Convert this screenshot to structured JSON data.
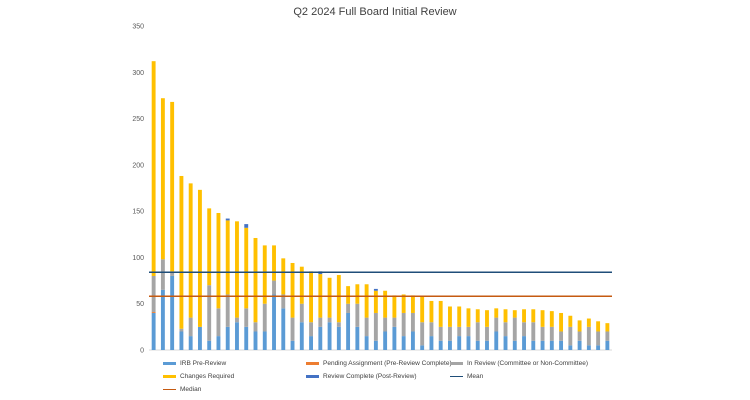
{
  "chart_data": {
    "type": "bar",
    "stacked": true,
    "title": "Q2 2024 Full Board Initial Review",
    "xlabel": "",
    "ylabel": "",
    "ylim": [
      0,
      350
    ],
    "yticks": [
      0,
      50,
      100,
      150,
      200,
      250,
      300,
      350
    ],
    "grid": false,
    "legend_position": "bottom",
    "series": [
      {
        "name": "IRB Pre-Review",
        "color": "#5b9bd5",
        "values": [
          40,
          65,
          80,
          20,
          15,
          25,
          10,
          15,
          25,
          30,
          25,
          20,
          20,
          60,
          45,
          10,
          30,
          15,
          25,
          30,
          25,
          40,
          25,
          15,
          10,
          20,
          25,
          15,
          20,
          5,
          15,
          10,
          10,
          15,
          15,
          10,
          10,
          20,
          15,
          10,
          15,
          10,
          10,
          10,
          10,
          5,
          10,
          5,
          5,
          10
        ]
      },
      {
        "name": "Pending Assignment (Pre-Review Complete)",
        "color": "#ed7d31",
        "values": [
          1,
          0,
          0,
          0,
          0,
          0,
          0,
          0,
          0,
          0,
          0,
          0,
          0,
          0,
          0,
          0,
          0,
          0,
          0,
          0,
          0,
          0,
          0,
          0,
          0,
          0,
          0,
          0,
          0,
          0,
          0,
          0,
          0,
          0,
          0,
          0,
          0,
          0,
          0,
          0,
          0,
          0,
          0,
          0,
          0,
          0,
          0,
          0,
          0,
          0
        ]
      },
      {
        "name": "In Review (Committee or Non-Committee)",
        "color": "#a5a5a5",
        "values": [
          39,
          33,
          5,
          3,
          20,
          0,
          60,
          30,
          35,
          5,
          20,
          10,
          30,
          15,
          15,
          25,
          20,
          15,
          10,
          5,
          5,
          10,
          25,
          20,
          30,
          15,
          10,
          25,
          20,
          25,
          15,
          15,
          15,
          10,
          10,
          20,
          15,
          15,
          15,
          25,
          15,
          20,
          15,
          15,
          10,
          20,
          10,
          20,
          15,
          10
        ]
      },
      {
        "name": "Changes Required",
        "color": "#ffc000",
        "values": [
          232,
          174,
          183,
          165,
          145,
          148,
          83,
          103,
          80,
          104,
          87,
          91,
          63,
          38,
          39,
          59,
          40,
          55,
          47,
          43,
          51,
          19,
          21,
          36,
          24,
          29,
          24,
          20,
          19,
          28,
          23,
          28,
          22,
          22,
          20,
          14,
          18,
          10,
          14,
          8,
          14,
          14,
          18,
          17,
          20,
          12,
          12,
          9,
          11,
          9
        ]
      },
      {
        "name": "Review Complete (Post-Review)",
        "color": "#4472c4",
        "values": [
          0,
          0,
          0,
          0,
          0,
          0,
          0,
          0,
          2,
          0,
          4,
          0,
          0,
          0,
          0,
          0,
          0,
          0,
          3,
          0,
          0,
          0,
          0,
          0,
          2,
          0,
          0,
          0,
          0,
          0,
          0,
          0,
          0,
          0,
          0,
          0,
          0,
          0,
          0,
          0,
          0,
          0,
          0,
          0,
          0,
          0,
          0,
          0,
          0,
          0
        ]
      }
    ],
    "reference_lines": [
      {
        "name": "Mean",
        "value": 84,
        "color": "#1f4e79"
      },
      {
        "name": "Median",
        "value": 58,
        "color": "#c55a11"
      }
    ]
  }
}
